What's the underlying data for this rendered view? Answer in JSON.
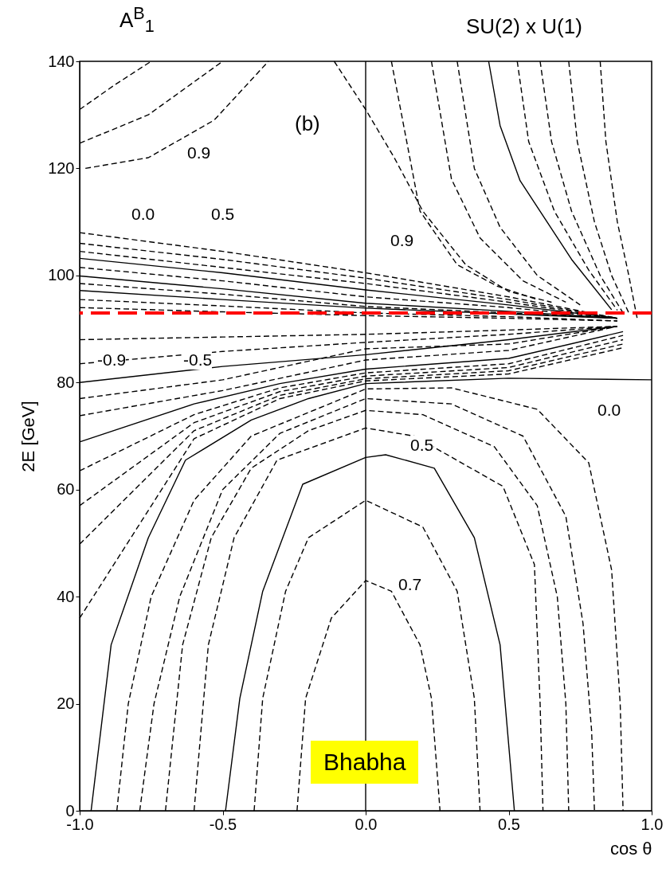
{
  "chart_data": {
    "type": "line",
    "title": "A$^{B}$$_{1}$",
    "subtitle": "SU(2) x U(1)",
    "xlabel": "cos θ",
    "ylabel": "2E [GeV]",
    "xlim": [
      -1,
      1
    ],
    "ylim": [
      0,
      140
    ],
    "xticks": [
      {
        "value": -1,
        "label": "-1.0"
      },
      {
        "value": -0.5,
        "label": "-0.5"
      },
      {
        "value": 0,
        "label": "0.0"
      },
      {
        "value": 0.5,
        "label": "0.5"
      },
      {
        "value": 1,
        "label": "1.0"
      }
    ],
    "yticks": [
      0,
      20,
      40,
      60,
      80,
      100,
      120,
      140
    ],
    "grid": false,
    "legend": false,
    "series": [
      {
        "color": "#000000",
        "line_style": "dashed",
        "x": [
          -1,
          -0.5,
          0,
          0.5,
          0.88
        ],
        "values": [
          108,
          104.5,
          100.5,
          96,
          92
        ]
      },
      {
        "color": "#000000",
        "line_style": "dashed",
        "x": [
          -1,
          -0.5,
          0,
          0.5,
          0.88
        ],
        "values": [
          106,
          103,
          99.5,
          95.5,
          92
        ]
      },
      {
        "color": "#000000",
        "line_style": "dashed",
        "x": [
          -1,
          -0.5,
          0,
          0.5,
          0.88
        ],
        "values": [
          104.5,
          101.5,
          98.5,
          95,
          92
        ]
      },
      {
        "color": "#000000",
        "line_style": "solid",
        "x": [
          -1,
          -0.5,
          0,
          0.5,
          0.88
        ],
        "values": [
          103.2,
          100.5,
          97.3,
          94.5,
          92
        ]
      },
      {
        "color": "#000000",
        "line_style": "dashed",
        "x": [
          -1,
          -0.5,
          0,
          0.5,
          0.88
        ],
        "values": [
          101.5,
          99,
          96,
          94,
          92
        ]
      },
      {
        "color": "#000000",
        "line_style": "solid",
        "x": [
          -1,
          -0.5,
          0,
          0.5,
          0.88
        ],
        "values": [
          99.9,
          97.5,
          94.8,
          93.3,
          92
        ]
      },
      {
        "color": "#000000",
        "line_style": "dashed",
        "x": [
          -1,
          -0.5,
          0,
          0.5,
          0.88
        ],
        "values": [
          98.5,
          96.5,
          94.2,
          93,
          92
        ]
      },
      {
        "color": "#000000",
        "line_style": "solid",
        "x": [
          -1,
          -0.5,
          0,
          0.5,
          0.88
        ],
        "values": [
          97.2,
          95.5,
          93.9,
          92.8,
          92
        ]
      },
      {
        "color": "#000000",
        "line_style": "dashed",
        "x": [
          -1,
          -0.5,
          0,
          0.5,
          0.88
        ],
        "values": [
          95.5,
          94.3,
          93,
          92.3,
          91.5
        ]
      },
      {
        "color": "#000000",
        "line_style": "dashed",
        "x": [
          -1,
          -0.5,
          0,
          0.5,
          0.88
        ],
        "values": [
          94,
          93.2,
          92.5,
          92,
          91.5
        ]
      },
      {
        "color": "#000000",
        "line_style": "dashed",
        "x": [
          -1,
          -0.5,
          0,
          0.5,
          0.88
        ],
        "values": [
          88,
          88.5,
          89,
          89.8,
          90.5
        ]
      },
      {
        "color": "#000000",
        "line_style": "dashed",
        "x": [
          -1,
          -0.5,
          0,
          0.5,
          0.88
        ],
        "values": [
          83.5,
          85.8,
          87.5,
          89,
          90.5
        ]
      },
      {
        "color": "#000000",
        "line_style": "solid",
        "x": [
          -1,
          -0.5,
          0,
          0.5,
          0.88
        ],
        "values": [
          80,
          83,
          85.2,
          88,
          90.5
        ]
      },
      {
        "color": "#000000",
        "line_style": "dashed",
        "x": [
          -1,
          -0.5,
          0,
          0.5,
          0.88
        ],
        "values": [
          77,
          80.5,
          86.3,
          87.2,
          90.5
        ]
      },
      {
        "color": "#000000",
        "line_style": "dashed",
        "x": [
          -1,
          -0.5,
          0,
          0.5,
          0.88
        ],
        "values": [
          73.8,
          78.5,
          84.2,
          86,
          90.5
        ]
      },
      {
        "color": "#000000",
        "line_style": "solid",
        "x": [
          -1,
          -0.6,
          -0.3,
          0,
          0.5,
          0.9
        ],
        "values": [
          68.9,
          76,
          79.8,
          82.5,
          84.5,
          89.5
        ]
      },
      {
        "color": "#000000",
        "line_style": "dashed",
        "x": [
          -1,
          -0.6,
          -0.3,
          0,
          0.5,
          0.9
        ],
        "values": [
          63.5,
          74,
          79,
          81.8,
          83.5,
          88.8
        ]
      },
      {
        "color": "#000000",
        "line_style": "dashed",
        "x": [
          -1,
          -0.6,
          -0.3,
          0,
          0.5,
          0.9
        ],
        "values": [
          57,
          72.5,
          78.3,
          81.2,
          82.8,
          88
        ]
      },
      {
        "color": "#000000",
        "line_style": "dashed",
        "x": [
          -1,
          -0.6,
          -0.3,
          0,
          0.5,
          0.9
        ],
        "values": [
          49.8,
          71,
          77.6,
          80.7,
          82.2,
          87.2
        ]
      },
      {
        "color": "#000000",
        "line_style": "dashed",
        "x": [
          -1,
          -0.6,
          -0.3,
          0,
          0.5,
          0.9
        ],
        "values": [
          36,
          69.5,
          77,
          80.3,
          81.6,
          86.5
        ]
      },
      {
        "color": "#000000",
        "line_style": "solid",
        "x": [
          -0.96,
          -0.89,
          -0.76,
          -0.63,
          -0.4,
          -0.2,
          0,
          0.5,
          1
        ],
        "values": [
          0,
          31,
          51,
          65.5,
          73,
          77,
          79.8,
          80.8,
          80.5
        ]
      },
      {
        "color": "#000000",
        "line_style": "dashed",
        "x": [
          -0.87,
          -0.83,
          -0.75,
          -0.6,
          -0.4,
          0,
          0.3,
          0.6,
          0.78,
          0.86,
          0.89,
          0.9
        ],
        "values": [
          0,
          20,
          40,
          58,
          70,
          78.8,
          79,
          75,
          65,
          45,
          20,
          0
        ]
      },
      {
        "color": "#000000",
        "line_style": "dashed",
        "x": [
          -0.79,
          -0.74,
          -0.65,
          -0.5,
          -0.3,
          0,
          0.3,
          0.55,
          0.7,
          0.76,
          0.79,
          0.8
        ],
        "values": [
          0,
          20,
          40,
          60,
          70.5,
          77,
          76,
          70,
          55,
          35,
          15,
          0
        ]
      },
      {
        "color": "#000000",
        "line_style": "dashed",
        "x": [
          -0.7,
          -0.64,
          -0.54,
          -0.4,
          -0.2,
          0,
          0.2,
          0.45,
          0.6,
          0.67,
          0.7,
          0.71
        ],
        "values": [
          0,
          31,
          51,
          64,
          71,
          74.8,
          74,
          68,
          57,
          40,
          20,
          0
        ]
      },
      {
        "color": "#000000",
        "line_style": "dashed",
        "x": [
          -0.6,
          -0.55,
          -0.46,
          -0.31,
          0,
          0.17,
          0.48,
          0.59,
          0.61,
          0.62
        ],
        "values": [
          0,
          31,
          51,
          65.5,
          71.5,
          70,
          60.6,
          46,
          20,
          0
        ]
      },
      {
        "color": "#000000",
        "line_style": "solid",
        "x": [
          -0.49,
          -0.44,
          -0.36,
          -0.22,
          0,
          0.07,
          0.24,
          0.38,
          0.47,
          0.52
        ],
        "values": [
          0,
          21,
          41,
          61,
          66,
          66.5,
          64,
          51,
          31,
          0
        ]
      },
      {
        "color": "#000000",
        "line_style": "dashed",
        "x": [
          -0.39,
          -0.36,
          -0.28,
          -0.2,
          0,
          0.2,
          0.32,
          0.38,
          0.4
        ],
        "values": [
          0,
          21,
          41,
          51,
          58,
          53,
          41,
          21,
          0
        ]
      },
      {
        "color": "#000000",
        "line_style": "dashed",
        "x": [
          -0.24,
          -0.21,
          -0.12,
          0,
          0.09,
          0.19,
          0.23,
          0.26
        ],
        "values": [
          0,
          21,
          36,
          43,
          41,
          31,
          21,
          0
        ]
      },
      {
        "color": "#000000",
        "line_style": "dashed",
        "x": [
          -1,
          -0.88,
          -0.75
        ],
        "values": [
          131,
          135.5,
          140
        ]
      },
      {
        "color": "#000000",
        "line_style": "dashed",
        "x": [
          -1,
          -0.76,
          -0.5
        ],
        "values": [
          124.7,
          130,
          140
        ]
      },
      {
        "color": "#000000",
        "line_style": "dashed",
        "x": [
          -0.98,
          -0.76,
          -0.53,
          -0.34
        ],
        "values": [
          120,
          122,
          129,
          140
        ]
      },
      {
        "color": "#000000",
        "line_style": "dashed",
        "x": [
          -0.11,
          0,
          0.1,
          0.2,
          0.35,
          0.5,
          0.65
        ],
        "values": [
          140,
          131,
          122,
          112,
          102,
          97,
          95
        ]
      },
      {
        "color": "#000000",
        "line_style": "dashed",
        "x": [
          0.09,
          0.19,
          0.32,
          0.46,
          0.6
        ],
        "values": [
          140,
          112,
          102,
          98,
          95.5
        ]
      },
      {
        "color": "#000000",
        "line_style": "dashed",
        "x": [
          0.23,
          0.3,
          0.4,
          0.55,
          0.7
        ],
        "values": [
          140,
          118,
          107,
          99,
          95
        ]
      },
      {
        "color": "#000000",
        "line_style": "dashed",
        "x": [
          0.32,
          0.38,
          0.47,
          0.6,
          0.75
        ],
        "values": [
          140,
          120,
          109,
          100,
          94.5
        ]
      },
      {
        "color": "#000000",
        "line_style": "solid",
        "x": [
          0.43,
          0.47,
          0.54,
          0.72,
          0.86
        ],
        "values": [
          140,
          128,
          117.7,
          103,
          93.6
        ]
      },
      {
        "color": "#000000",
        "line_style": "dashed",
        "x": [
          0.53,
          0.57,
          0.66,
          0.78,
          0.88
        ],
        "values": [
          140,
          125,
          112,
          101,
          93.5
        ]
      },
      {
        "color": "#000000",
        "line_style": "dashed",
        "x": [
          0.61,
          0.65,
          0.72,
          0.82,
          0.9
        ],
        "values": [
          140,
          125,
          112,
          100,
          93
        ]
      },
      {
        "color": "#000000",
        "line_style": "dashed",
        "x": [
          0.71,
          0.74,
          0.8,
          0.86,
          0.92
        ],
        "values": [
          140,
          125,
          110,
          100,
          93
        ]
      },
      {
        "color": "#000000",
        "line_style": "dashed",
        "x": [
          0.82,
          0.84,
          0.88,
          0.92,
          0.95
        ],
        "values": [
          140,
          125,
          110,
          100,
          91.8
        ]
      }
    ],
    "ref_lines": [
      {
        "axis": "x",
        "value": 0,
        "color": "#000000",
        "line_style": "solid"
      },
      {
        "axis": "y",
        "value": 93,
        "color": "#ff0000",
        "line_style": "dashed"
      }
    ],
    "annotations": [
      "(b)",
      "Bhabha",
      "0.9",
      "0.0",
      "0.5",
      "-0.9",
      "-0.5",
      "0.9",
      "0.0",
      "0.5",
      "0.7"
    ]
  }
}
